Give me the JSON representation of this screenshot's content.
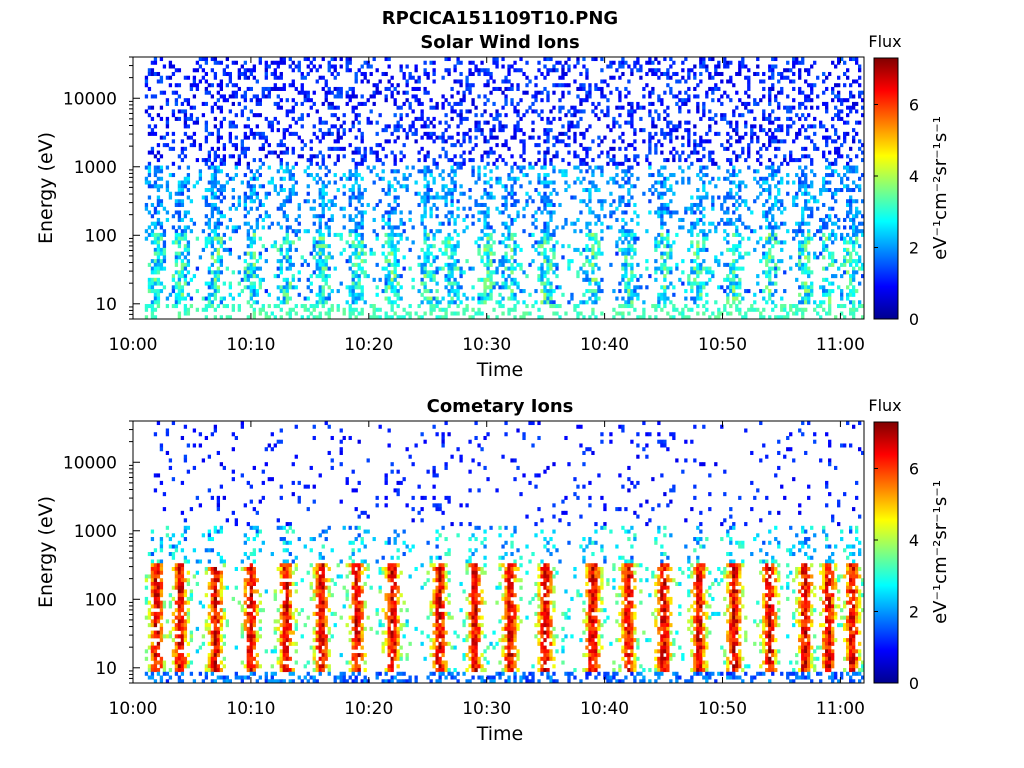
{
  "figure": {
    "title": "RPCICA151109T10.PNG"
  },
  "chart_data": [
    {
      "type": "heatmap",
      "title": "Solar Wind Ions",
      "xlabel": "Time",
      "ylabel": "Energy (eV)",
      "y_scale": "log",
      "ylim": [
        6,
        40000
      ],
      "xlim": [
        "10:00",
        "11:02"
      ],
      "x_ticks": [
        "10:00",
        "10:10",
        "10:20",
        "10:30",
        "10:40",
        "10:50",
        "11:00"
      ],
      "y_ticks": [
        "10",
        "100",
        "1000",
        "10000"
      ],
      "y_tick_values": [
        10,
        100,
        1000,
        10000
      ],
      "data_start": "10:01",
      "data_end": "11:02",
      "colormap": "jet",
      "colorbar": {
        "title": "Flux",
        "label": "eV⁻¹cm⁻²sr⁻¹s⁻¹",
        "ticks": [
          "0",
          "2",
          "4",
          "6"
        ],
        "range": [
          0,
          7.3
        ]
      },
      "bursts": [
        "10:02",
        "10:04",
        "10:07",
        "10:10",
        "10:13",
        "10:16",
        "10:19",
        "10:22",
        "10:25",
        "10:27",
        "10:30",
        "10:32",
        "10:35",
        "10:39",
        "10:42",
        "10:45",
        "10:48",
        "10:51",
        "10:54",
        "10:57",
        "10:59",
        "11:01"
      ]
    },
    {
      "type": "heatmap",
      "title": "Cometary Ions",
      "xlabel": "Time",
      "ylabel": "Energy (eV)",
      "y_scale": "log",
      "ylim": [
        6,
        40000
      ],
      "xlim": [
        "10:00",
        "11:02"
      ],
      "x_ticks": [
        "10:00",
        "10:10",
        "10:20",
        "10:30",
        "10:40",
        "10:50",
        "11:00"
      ],
      "y_ticks": [
        "10",
        "100",
        "1000",
        "10000"
      ],
      "y_tick_values": [
        10,
        100,
        1000,
        10000
      ],
      "data_start": "10:01",
      "data_end": "11:02",
      "colormap": "jet",
      "colorbar": {
        "title": "Flux",
        "label": "eV⁻¹cm⁻²sr⁻¹s⁻¹",
        "ticks": [
          "0",
          "2",
          "4",
          "6"
        ],
        "range": [
          0,
          7.3
        ]
      },
      "bursts": [
        "10:02",
        "10:04",
        "10:07",
        "10:10",
        "10:13",
        "10:16",
        "10:19",
        "10:22",
        "10:26",
        "10:29",
        "10:32",
        "10:35",
        "10:39",
        "10:42",
        "10:45",
        "10:48",
        "10:51",
        "10:54",
        "10:57",
        "10:59",
        "11:01"
      ]
    }
  ]
}
